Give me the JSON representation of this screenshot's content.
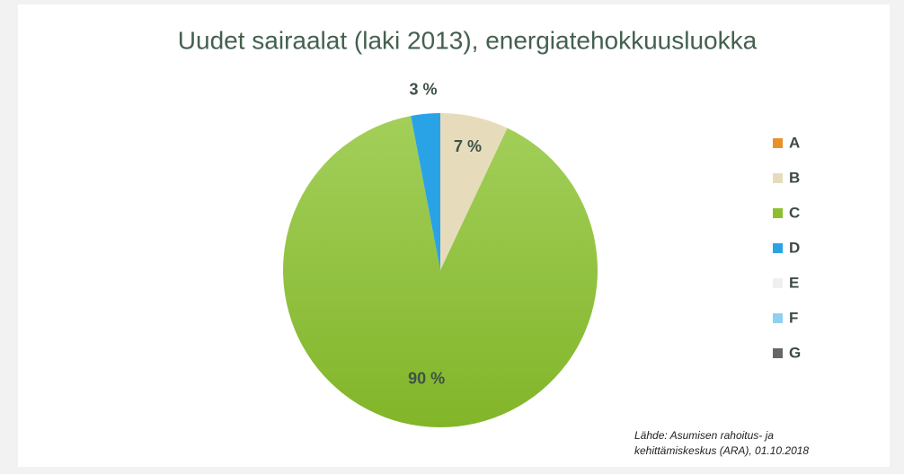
{
  "chart_data": {
    "type": "pie",
    "title": "Uudet sairaalat (laki 2013), energiatehokkuusluokka",
    "categories": [
      "A",
      "B",
      "C",
      "D",
      "E",
      "F",
      "G"
    ],
    "values": [
      0,
      7,
      90,
      3,
      0,
      0,
      0
    ],
    "value_labels": [
      null,
      "7 %",
      "90 %",
      "3 %",
      null,
      null,
      null
    ],
    "colors": [
      "#e8912a",
      "#e6dcbc",
      "#8cbf2c",
      "#2aa3e6",
      "#efefef",
      "#8fd0f0",
      "#666666"
    ],
    "legend": "right",
    "source": [
      "Lähde: Asumisen rahoitus- ja",
      "kehittämiskeskus (ARA), 01.10.2018"
    ]
  }
}
